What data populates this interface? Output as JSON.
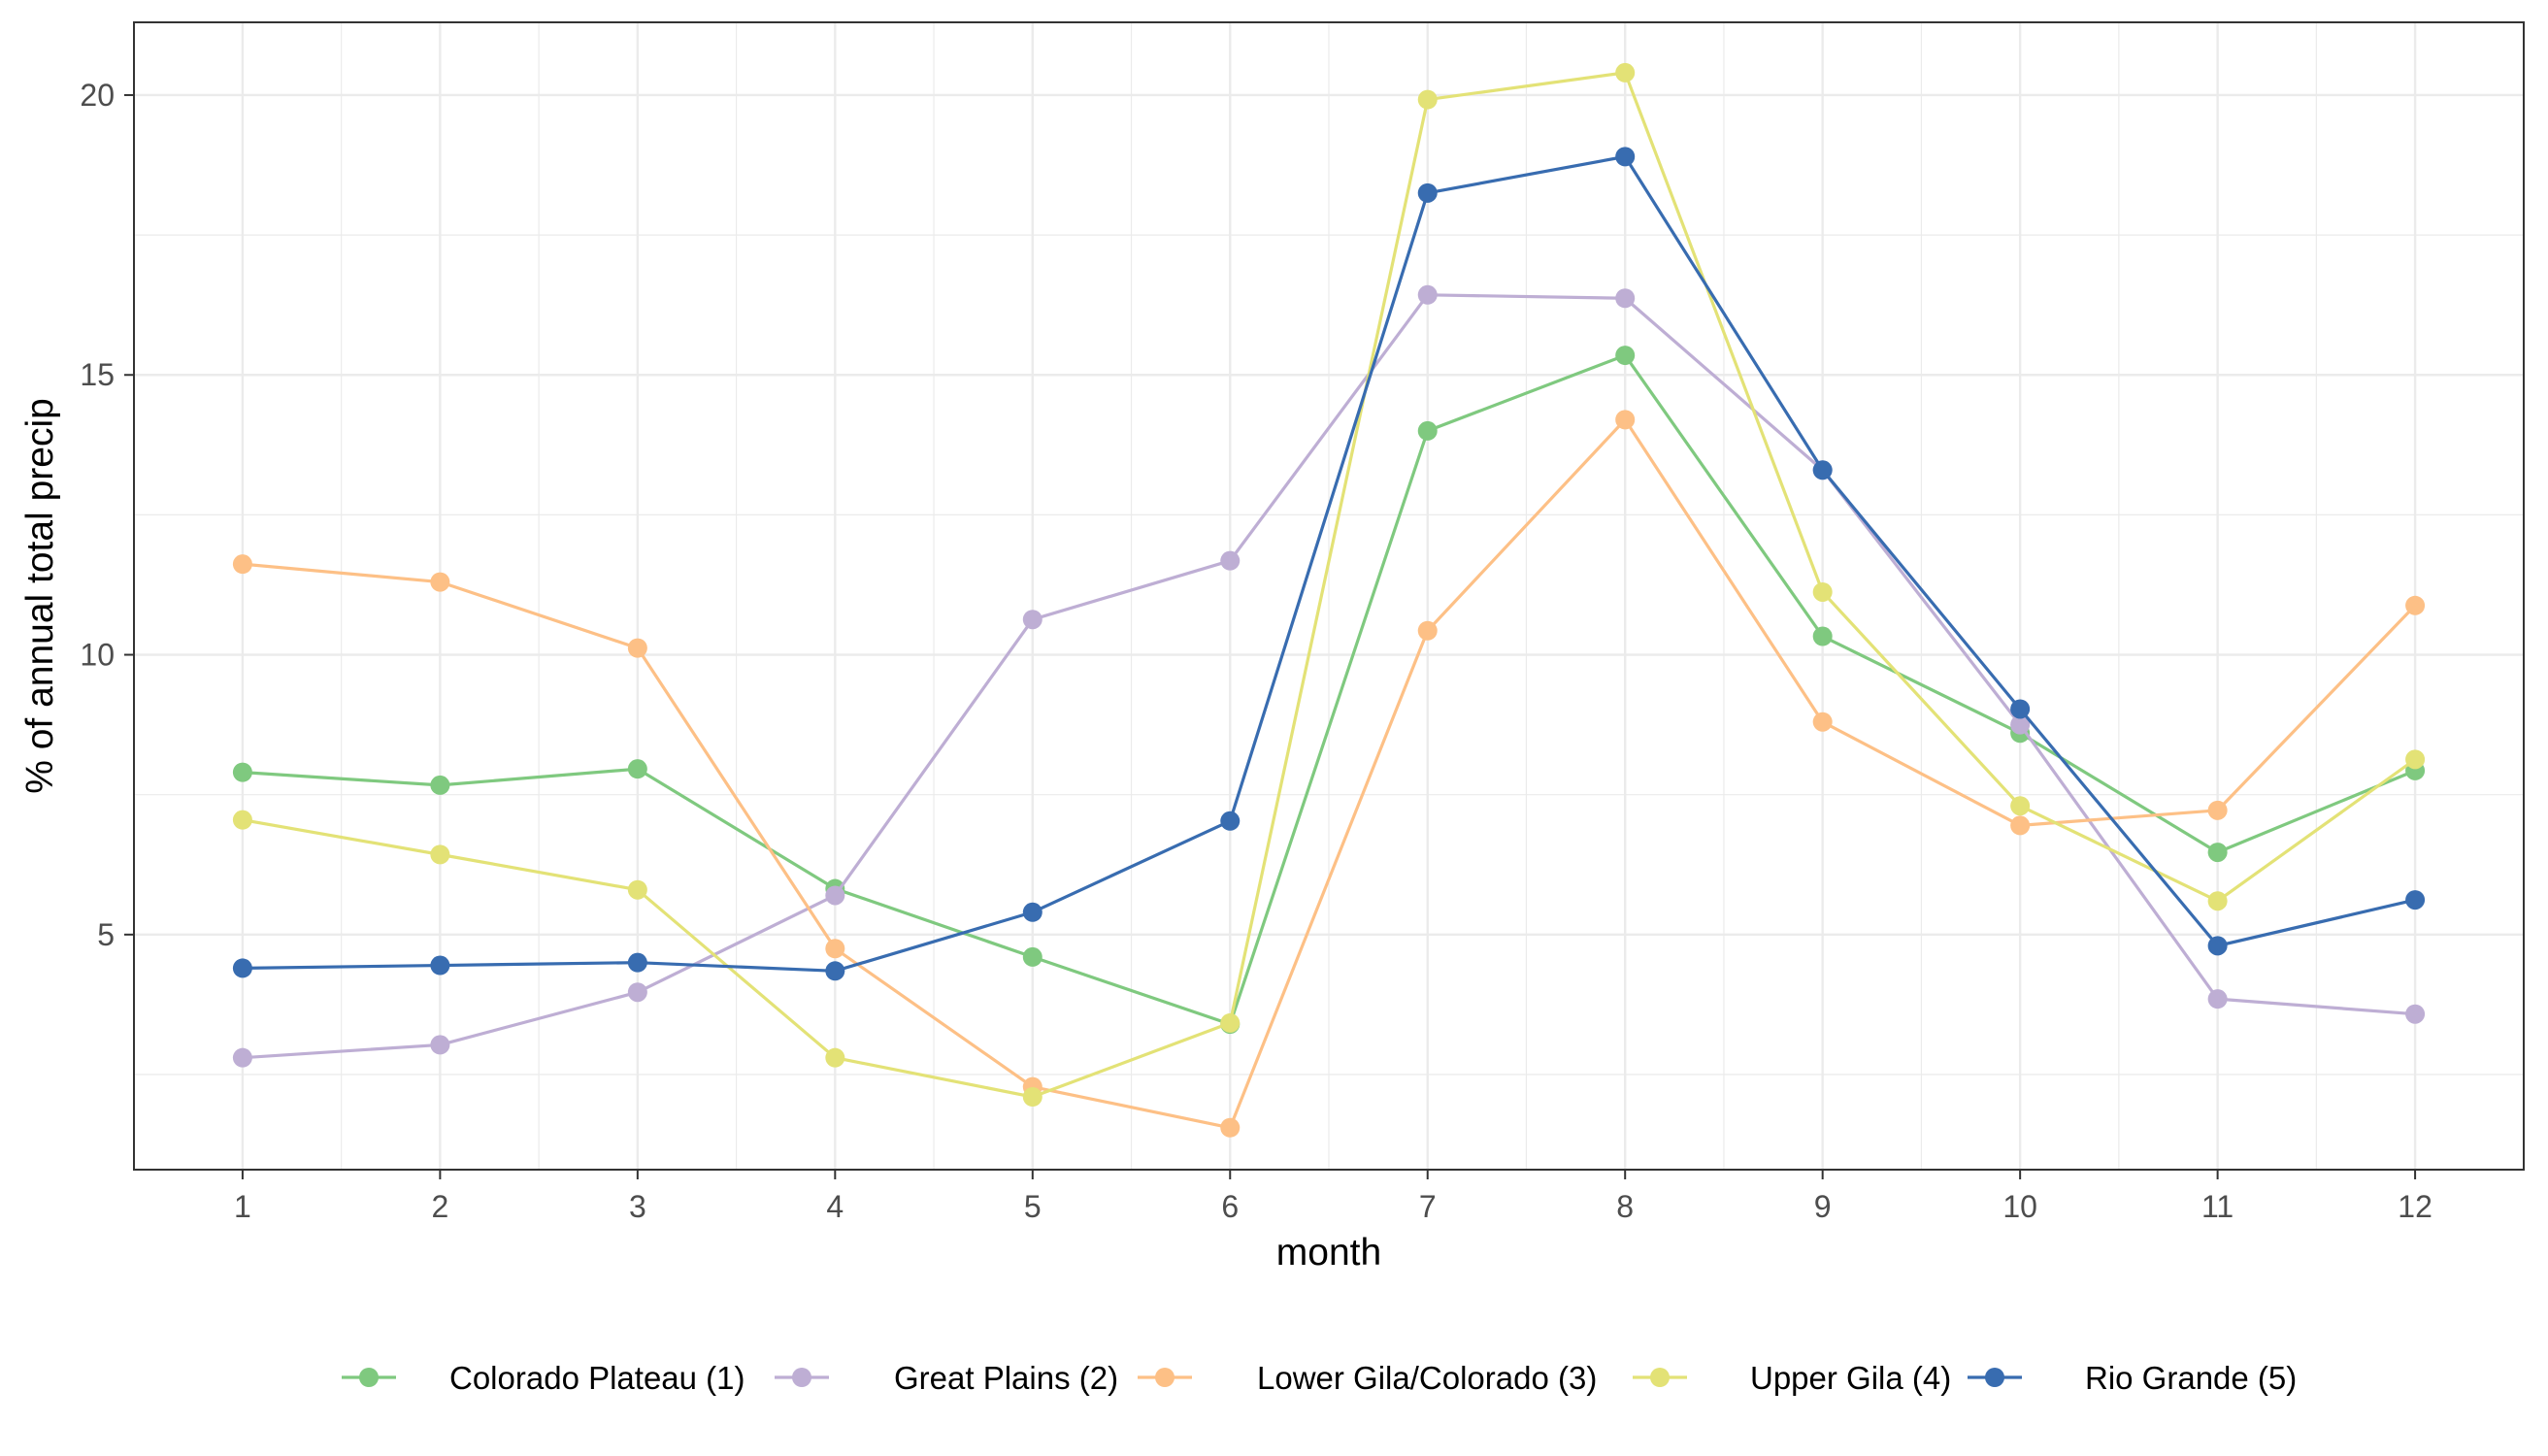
{
  "chart_data": {
    "type": "line",
    "xlabel": "month",
    "ylabel": "% of annual total precip",
    "x": [
      1,
      2,
      3,
      4,
      5,
      6,
      7,
      8,
      9,
      10,
      11,
      12
    ],
    "x_ticks": [
      "1",
      "2",
      "3",
      "4",
      "5",
      "6",
      "7",
      "8",
      "9",
      "10",
      "11",
      "12"
    ],
    "xlim": [
      0.45,
      12.55
    ],
    "ylim": [
      0.8,
      21.3
    ],
    "y_ticks": [
      5,
      10,
      15,
      20
    ],
    "grid": true,
    "legend_position": "bottom",
    "series": [
      {
        "name": "Colorado Plateau (1)",
        "color": "#7fc97f",
        "values": [
          7.9,
          7.67,
          7.96,
          5.82,
          4.6,
          3.4,
          14.0,
          15.35,
          10.33,
          8.6,
          6.47,
          7.93
        ]
      },
      {
        "name": "Great Plains (2)",
        "color": "#beaed4",
        "values": [
          2.8,
          3.03,
          3.97,
          5.7,
          10.63,
          11.68,
          16.43,
          16.37,
          13.3,
          8.75,
          3.85,
          3.58
        ]
      },
      {
        "name": "Lower Gila/Colorado (3)",
        "color": "#fdc086",
        "values": [
          11.62,
          11.3,
          10.12,
          4.75,
          2.28,
          1.55,
          10.43,
          14.2,
          8.8,
          6.95,
          7.22,
          10.88
        ]
      },
      {
        "name": "Upper Gila (4)",
        "color": "#e3e276",
        "values": [
          7.05,
          6.43,
          5.8,
          2.8,
          2.1,
          3.42,
          19.92,
          20.4,
          11.12,
          7.3,
          5.6,
          8.13
        ]
      },
      {
        "name": "Rio Grande (5)",
        "color": "#386cb0",
        "values": [
          4.4,
          4.45,
          4.5,
          4.35,
          5.4,
          7.03,
          18.25,
          18.9,
          13.3,
          9.03,
          4.8,
          5.62
        ]
      }
    ]
  }
}
